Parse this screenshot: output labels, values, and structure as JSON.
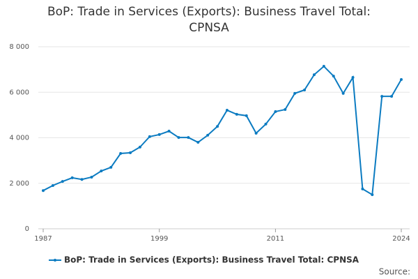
{
  "chart_data": {
    "type": "line",
    "title": "BoP: Trade in Services (Exports): Business Travel Total: CPNSA",
    "x": [
      1987,
      1988,
      1989,
      1990,
      1991,
      1992,
      1993,
      1994,
      1995,
      1996,
      1997,
      1998,
      1999,
      2000,
      2001,
      2002,
      2003,
      2004,
      2005,
      2006,
      2007,
      2008,
      2009,
      2010,
      2011,
      2012,
      2013,
      2014,
      2015,
      2016,
      2017,
      2018,
      2019,
      2020,
      2021,
      2022,
      2023,
      2024
    ],
    "series": [
      {
        "name": "BoP: Trade in Services (Exports): Business Travel Total: CPNSA",
        "color": "#0b7bc1",
        "values": [
          1680,
          1900,
          2080,
          2240,
          2170,
          2270,
          2540,
          2700,
          3310,
          3340,
          3590,
          4050,
          4140,
          4290,
          4010,
          4010,
          3800,
          4110,
          4500,
          5210,
          5030,
          4970,
          4200,
          4600,
          5150,
          5240,
          5950,
          6100,
          6770,
          7140,
          6710,
          5950,
          6650,
          1750,
          1500,
          5820,
          5820,
          6560
        ]
      }
    ],
    "xlim": [
      1987,
      2024
    ],
    "xticks": [
      1987,
      1999,
      2011,
      2024
    ],
    "ylim": [
      0,
      8000
    ],
    "yticks": [
      0,
      {
        "value": 2000,
        "label": "2 000"
      },
      {
        "value": 4000,
        "label": "4 000"
      },
      {
        "value": 6000,
        "label": "6 000"
      },
      {
        "value": 8000,
        "label": "8 000"
      }
    ],
    "grid": true,
    "source": "Source:"
  }
}
